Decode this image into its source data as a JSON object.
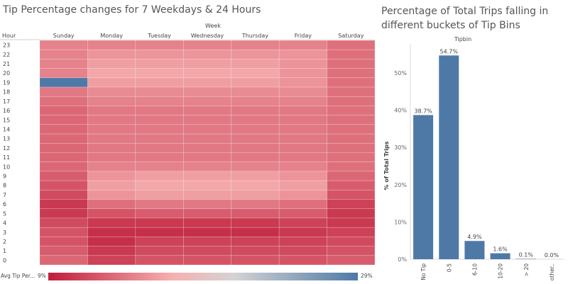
{
  "chart_data": [
    {
      "type": "heatmap",
      "title": "Tip Percentage changes for 7 Weekdays & 24 Hours",
      "column_header": "Week",
      "row_header": "Hour",
      "columns": [
        "Sunday",
        "Monday",
        "Tuesday",
        "Wednesday",
        "Thursday",
        "Friday",
        "Saturday"
      ],
      "rows": [
        "23",
        "22",
        "21",
        "20",
        "19",
        "18",
        "17",
        "16",
        "15",
        "14",
        "13",
        "12",
        "11",
        "10",
        "9",
        "8",
        "7",
        "6",
        "5",
        "4",
        "3",
        "2",
        "1",
        "0"
      ],
      "values": [
        [
          14.5,
          14.5,
          14.5,
          14.5,
          14.5,
          14.5,
          13.5
        ],
        [
          14.5,
          15.5,
          15.5,
          15.5,
          15.5,
          15.5,
          13.5
        ],
        [
          14.5,
          16.0,
          16.0,
          16.0,
          16.0,
          15.5,
          13.5
        ],
        [
          14.5,
          16.5,
          16.5,
          16.5,
          16.5,
          15.5,
          13.5
        ],
        [
          29.0,
          16.0,
          16.0,
          16.0,
          16.0,
          15.5,
          13.5
        ],
        [
          14.0,
          15.0,
          15.0,
          15.0,
          15.0,
          15.0,
          13.5
        ],
        [
          13.5,
          14.5,
          14.5,
          14.5,
          14.5,
          14.5,
          13.5
        ],
        [
          13.0,
          14.0,
          14.0,
          14.0,
          14.0,
          14.0,
          13.5
        ],
        [
          13.0,
          14.0,
          14.0,
          14.0,
          14.0,
          14.0,
          13.5
        ],
        [
          13.0,
          14.0,
          14.0,
          14.0,
          14.0,
          14.0,
          13.5
        ],
        [
          13.0,
          14.0,
          14.0,
          14.0,
          14.0,
          14.0,
          13.5
        ],
        [
          13.0,
          14.0,
          14.0,
          14.0,
          14.0,
          14.0,
          13.5
        ],
        [
          13.0,
          14.0,
          14.0,
          14.0,
          14.0,
          14.0,
          13.5
        ],
        [
          13.0,
          14.5,
          14.5,
          14.5,
          14.5,
          14.5,
          13.5
        ],
        [
          12.5,
          15.5,
          16.0,
          16.0,
          16.0,
          15.5,
          13.0
        ],
        [
          12.0,
          16.0,
          16.5,
          16.5,
          16.5,
          16.0,
          12.5
        ],
        [
          11.5,
          15.5,
          16.0,
          16.0,
          16.0,
          15.5,
          12.0
        ],
        [
          10.5,
          13.5,
          14.0,
          14.0,
          14.0,
          13.5,
          11.0
        ],
        [
          10.5,
          12.0,
          12.5,
          12.5,
          12.5,
          12.5,
          10.5
        ],
        [
          11.5,
          10.5,
          10.5,
          10.5,
          10.5,
          11.0,
          10.5
        ],
        [
          12.0,
          10.0,
          10.0,
          10.0,
          10.0,
          10.5,
          11.0
        ],
        [
          12.0,
          10.0,
          11.0,
          11.0,
          11.0,
          11.0,
          11.5
        ],
        [
          12.5,
          10.5,
          11.5,
          11.5,
          11.5,
          11.5,
          12.0
        ],
        [
          13.0,
          11.0,
          12.0,
          12.0,
          12.0,
          12.0,
          12.5
        ]
      ],
      "legend": {
        "label": "Avg Tip Per...",
        "min": 9,
        "max": 29,
        "min_label": "9%",
        "max_label": "29%"
      },
      "colors": {
        "low": "#bf1d3a",
        "mid": "#f6b0b0",
        "neutral": "#d3d3d3",
        "high": "#4e79a7"
      }
    },
    {
      "type": "bar",
      "title": "Percentage of Total Trips falling in different buckets of Tip Bins",
      "header": "Tipbin",
      "categories": [
        "No Tip",
        "0-5",
        "6-10",
        "10-20",
        "> 20",
        "other.."
      ],
      "values": [
        38.7,
        54.7,
        4.9,
        1.6,
        0.1,
        0.0
      ],
      "data_labels": [
        "38.7%",
        "54.7%",
        "4.9%",
        "1.6%",
        "0.1%",
        "0.0%"
      ],
      "ylabel": "% of Total Trips",
      "yticks": [
        0,
        10,
        20,
        30,
        40,
        50
      ],
      "ytick_labels": [
        "0%",
        "10%",
        "20%",
        "30%",
        "40%",
        "50%"
      ],
      "ylim": [
        0,
        57.8
      ],
      "color": "#4e79a7"
    }
  ]
}
